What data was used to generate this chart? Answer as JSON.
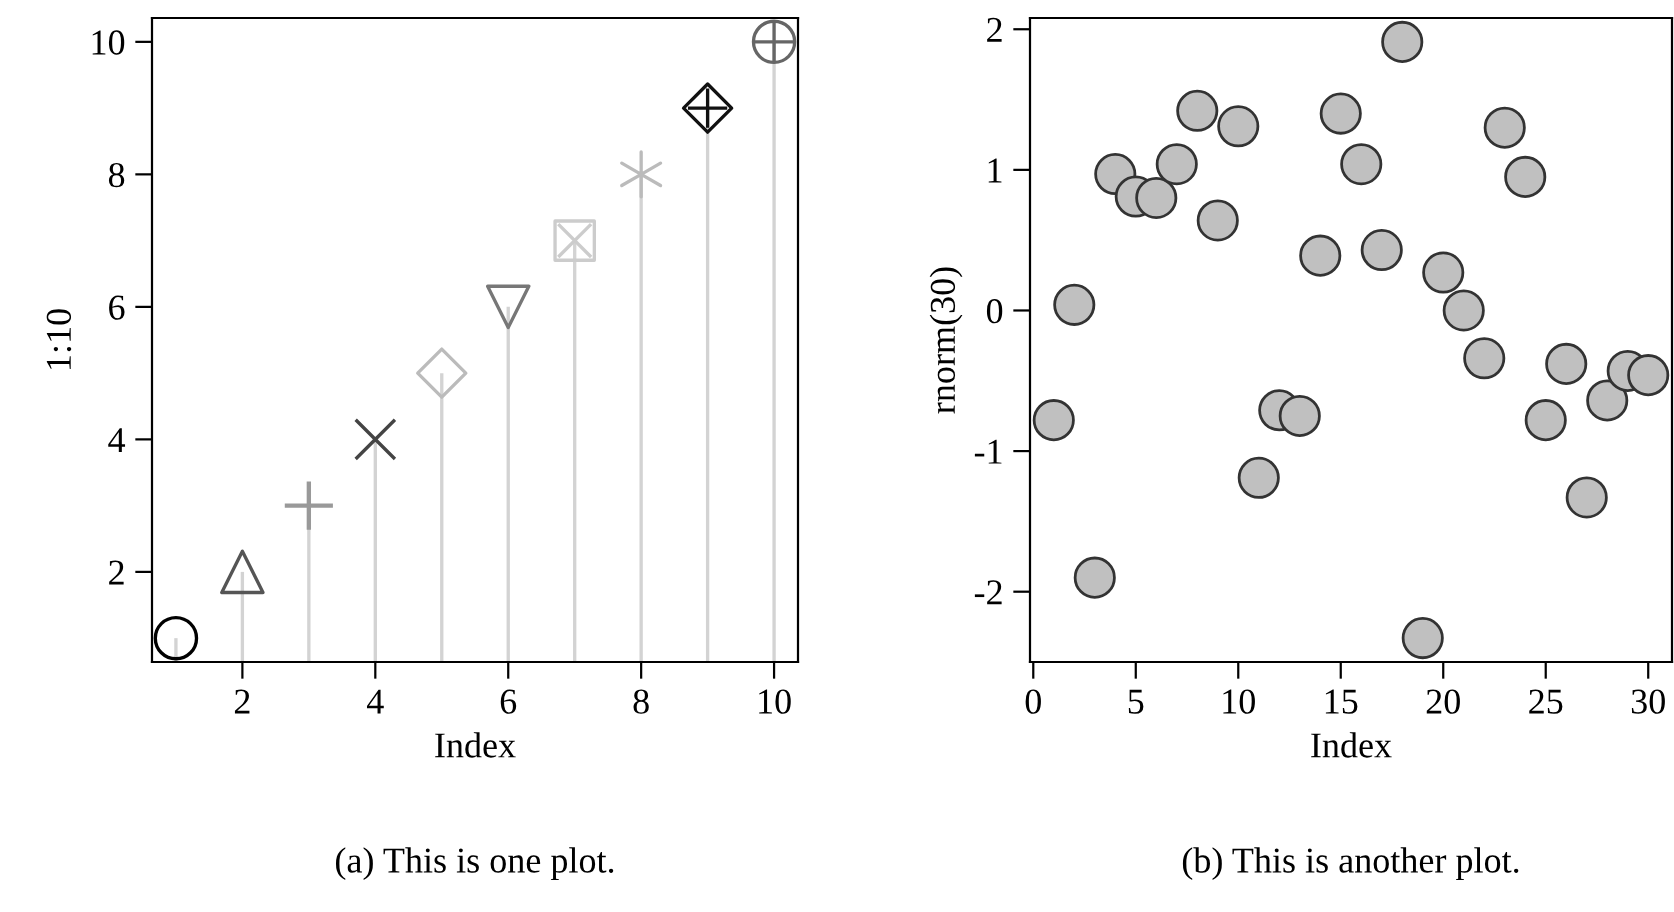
{
  "chart_data": [
    {
      "type": "lollipop",
      "xlabel": "Index",
      "ylabel": "1:10",
      "annotations": [
        "(a) This is one plot."
      ],
      "x": [
        1,
        2,
        3,
        4,
        5,
        6,
        7,
        8,
        9,
        10
      ],
      "values": [
        1,
        2,
        3,
        4,
        5,
        6,
        7,
        8,
        9,
        10
      ],
      "colors": [
        "#000000",
        "#555555",
        "#999999",
        "#444444",
        "#bbbbbb",
        "#777777",
        "#cccccc",
        "#bbbbbb",
        "#111111",
        "#666666"
      ],
      "color": "#d3d3d3",
      "marker": [
        "circle",
        "triangle",
        "plus",
        "x",
        "diamond",
        "triangle_down",
        "square_x",
        "star",
        "diamond_plus",
        "circle_plus"
      ],
      "xlim": [
        0.64,
        10.36
      ],
      "ylim": [
        0.64,
        10.36
      ],
      "xticks": [
        2,
        4,
        6,
        8,
        10
      ],
      "yticks": [
        2,
        4,
        6,
        8,
        10
      ],
      "legend": false
    },
    {
      "type": "scatter",
      "xlabel": "Index",
      "ylabel": "rnorm(30)",
      "annotations": [
        "(b) This is another plot."
      ],
      "x": [
        1,
        2,
        3,
        4,
        5,
        6,
        7,
        8,
        9,
        10,
        11,
        12,
        13,
        14,
        15,
        16,
        17,
        18,
        19,
        20,
        21,
        22,
        23,
        24,
        25,
        26,
        27,
        28,
        29,
        30
      ],
      "values": [
        -0.78,
        0.04,
        -1.9,
        0.97,
        0.81,
        0.8,
        1.04,
        1.42,
        0.64,
        1.31,
        -1.19,
        -0.71,
        -0.75,
        0.39,
        1.4,
        1.04,
        0.43,
        1.91,
        -2.33,
        0.27,
        0.0,
        -0.34,
        1.3,
        0.95,
        -0.78,
        -0.38,
        -1.33,
        -0.64,
        -0.43,
        -0.46
      ],
      "color": "#c0c0c0",
      "marker": "circle",
      "xlim": [
        -0.16,
        31.16
      ],
      "ylim": [
        -2.5,
        2.08
      ],
      "xticks": [
        0,
        5,
        10,
        15,
        20,
        25,
        30
      ],
      "yticks": [
        {
          "value": -2,
          "label": "-2"
        },
        {
          "value": -1,
          "label": "-1"
        },
        0,
        1,
        2
      ],
      "grid": false,
      "legend": false
    }
  ]
}
